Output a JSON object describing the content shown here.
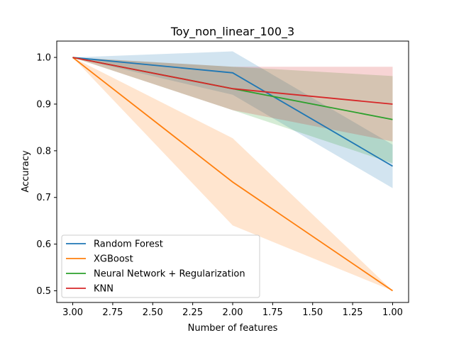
{
  "chart_data": {
    "type": "line",
    "title": "Toy_non_linear_100_3",
    "xlabel": "Number of features",
    "ylabel": "Accuracy",
    "x": [
      3,
      2,
      1
    ],
    "xlim": [
      3.1,
      0.9
    ],
    "ylim": [
      0.475,
      1.035
    ],
    "x_inverted": true,
    "xticks": [
      3.0,
      2.75,
      2.5,
      2.25,
      2.0,
      1.75,
      1.5,
      1.25,
      1.0
    ],
    "xtick_labels": [
      "3.00",
      "2.75",
      "2.50",
      "2.25",
      "2.00",
      "1.75",
      "1.50",
      "1.25",
      "1.00"
    ],
    "yticks": [
      0.5,
      0.6,
      0.7,
      0.8,
      0.9,
      1.0
    ],
    "ytick_labels": [
      "0.5",
      "0.6",
      "0.7",
      "0.8",
      "0.9",
      "1.0"
    ],
    "grid": false,
    "legend_position": "lower-left",
    "series": [
      {
        "name": "Random Forest",
        "color": "#1f77b4",
        "values": [
          1.0,
          0.967,
          0.767
        ],
        "lower": [
          1.0,
          0.92,
          0.72
        ],
        "upper": [
          1.0,
          1.013,
          0.813
        ]
      },
      {
        "name": "XGBoost",
        "color": "#ff7f0e",
        "values": [
          1.0,
          0.733,
          0.5
        ],
        "lower": [
          1.0,
          0.64,
          0.5
        ],
        "upper": [
          1.0,
          0.827,
          0.5
        ]
      },
      {
        "name": "Neural Network + Regularization",
        "color": "#2ca02c",
        "values": [
          1.0,
          0.933,
          0.867
        ],
        "lower": [
          1.0,
          0.887,
          0.773
        ],
        "upper": [
          1.0,
          0.98,
          0.96
        ]
      },
      {
        "name": "KNN",
        "color": "#d62728",
        "values": [
          1.0,
          0.933,
          0.9
        ],
        "lower": [
          1.0,
          0.887,
          0.82
        ],
        "upper": [
          1.0,
          0.98,
          0.98
        ]
      }
    ]
  }
}
